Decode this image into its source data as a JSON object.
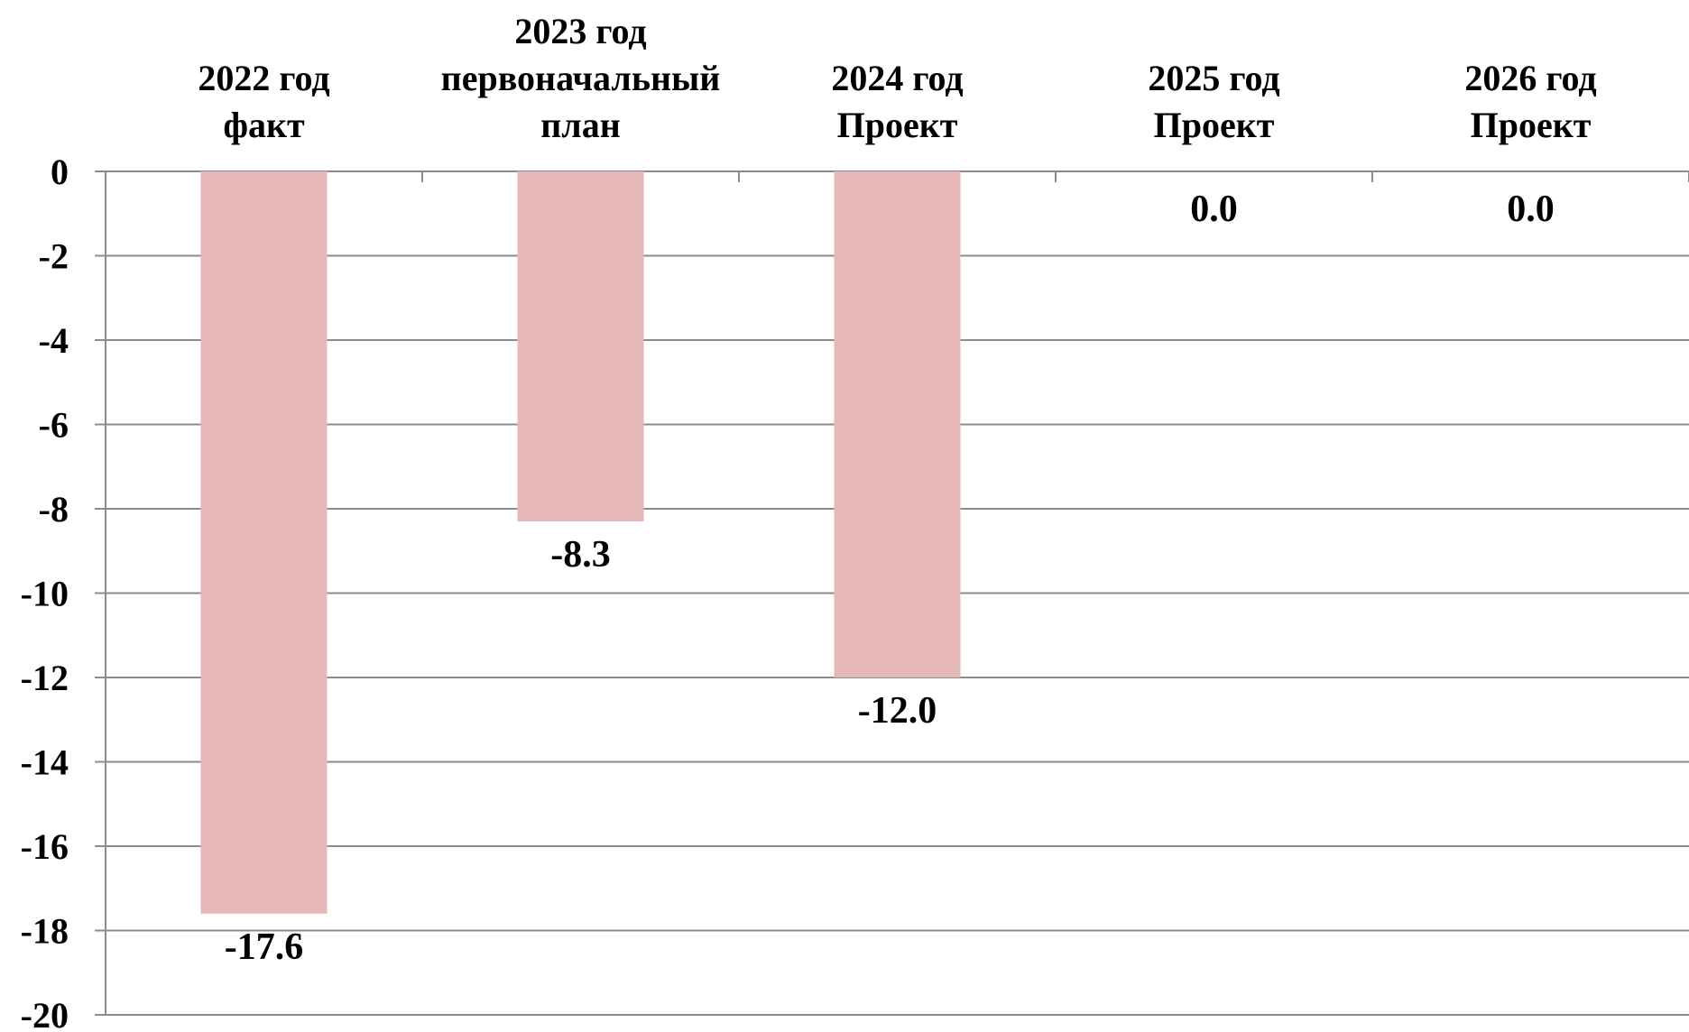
{
  "chart_data": {
    "type": "bar",
    "categories": [
      [
        "2022 год",
        "факт"
      ],
      [
        "2023 год",
        "первоначальный",
        "план"
      ],
      [
        "2024 год",
        "Проект"
      ],
      [
        "2025 год",
        "Проект"
      ],
      [
        "2026 год",
        "Проект"
      ]
    ],
    "values": [
      -17.6,
      -8.3,
      -12.0,
      0.0,
      0.0
    ],
    "data_labels": [
      "-17.6",
      "-8.3",
      "-12.0",
      "0.0",
      "0.0"
    ],
    "ylim": [
      -20,
      0
    ],
    "yticks": [
      0,
      -2,
      -4,
      -6,
      -8,
      -10,
      -12,
      -14,
      -16,
      -18,
      -20
    ],
    "title": "",
    "xlabel": "",
    "ylabel": "",
    "grid": true,
    "category_axis_position": "top",
    "colors": {
      "bar": "#e5b8b7",
      "grid": "#8c8c8c",
      "text": "#000000"
    }
  }
}
